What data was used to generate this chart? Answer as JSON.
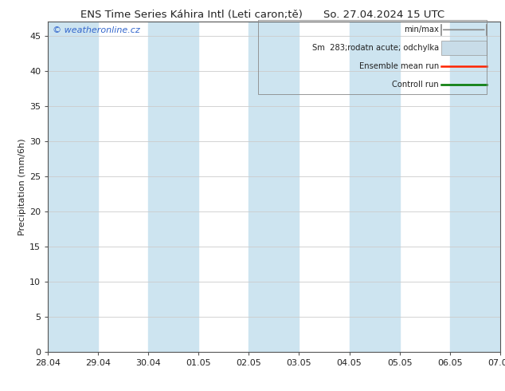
{
  "title_left": "ENS Time Series Káhira Intl (Leti caron;tě)",
  "title_right": "So. 27.04.2024 15 UTC",
  "ylabel": "Precipitation (mm/6h)",
  "watermark": "© weatheronline.cz",
  "xtick_labels": [
    "28.04",
    "29.04",
    "30.04",
    "01.05",
    "02.05",
    "03.05",
    "04.05",
    "05.05",
    "06.05",
    "07.05"
  ],
  "ytick_values": [
    0,
    5,
    10,
    15,
    20,
    25,
    30,
    35,
    40,
    45
  ],
  "ylim": [
    0,
    47
  ],
  "xlim": [
    0,
    9
  ],
  "plot_bg_color": "#ffffff",
  "band_color": "#cde4f0",
  "fig_bg_color": "#ffffff",
  "grid_color": "#cccccc",
  "title_fontsize": 9.5,
  "axis_fontsize": 8,
  "tick_fontsize": 8,
  "legend_labels": [
    "min/max",
    "Sm  283;rodatn acute; odchylka",
    "Ensemble mean run",
    "Controll run"
  ],
  "legend_line_colors": [
    "#888888",
    "#aaaaaa",
    "#ff2200",
    "#007700"
  ],
  "n_xpoints": 10,
  "blue_band_indices": [
    0,
    2,
    4,
    6,
    8
  ]
}
